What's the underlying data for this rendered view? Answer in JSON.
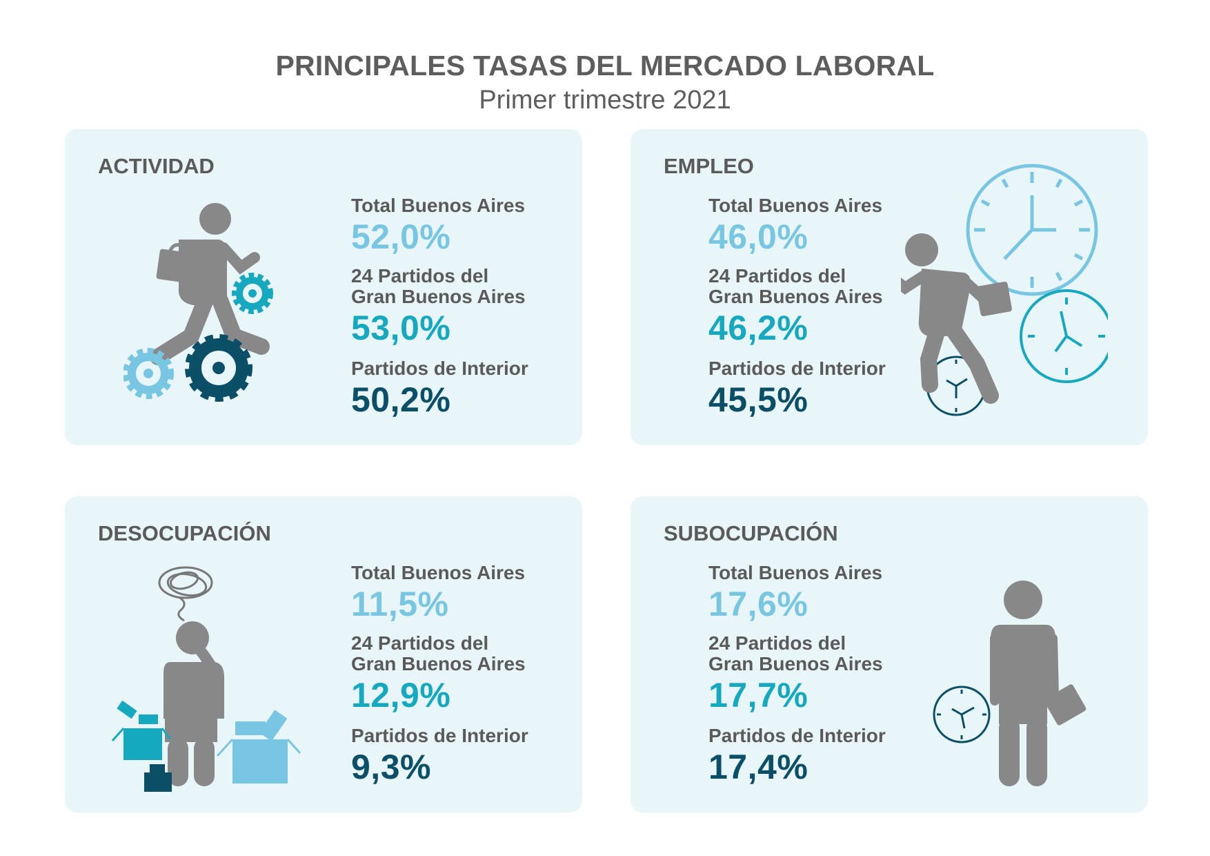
{
  "header": {
    "title": "PRINCIPALES TASAS DEL MERCADO LABORAL",
    "subtitle": "Primer trimestre  2021"
  },
  "colors": {
    "card_bg": "#e9f6f9",
    "light_blue": "#78c6e2",
    "teal": "#16a8bf",
    "dark_teal": "#0a4f67",
    "figure_gray": "#888888",
    "text_gray": "#5a5a5a"
  },
  "cards": [
    {
      "title": "ACTIVIDAD",
      "icon": "running-man-gears-icon",
      "stats": [
        {
          "label": "Total Buenos Aires",
          "value": "52,0%"
        },
        {
          "label": "24 Partidos del\nGran Buenos Aires",
          "value": "53,0%"
        },
        {
          "label": "Partidos de Interior",
          "value": "50,2%"
        }
      ]
    },
    {
      "title": "EMPLEO",
      "icon": "running-man-clocks-icon",
      "stats": [
        {
          "label": "Total Buenos Aires",
          "value": "46,0%"
        },
        {
          "label": "24 Partidos del\nGran Buenos Aires",
          "value": "46,2%"
        },
        {
          "label": "Partidos de Interior",
          "value": "45,5%"
        }
      ]
    },
    {
      "title": "DESOCUPACIÓN",
      "icon": "worried-man-boxes-icon",
      "stats": [
        {
          "label": "Total Buenos Aires",
          "value": "11,5%"
        },
        {
          "label": "24 Partidos del\nGran Buenos Aires",
          "value": "12,9%"
        },
        {
          "label": "Partidos de Interior",
          "value": "9,3%"
        }
      ]
    },
    {
      "title": "SUBOCUPACIÓN",
      "icon": "standing-man-clock-icon",
      "stats": [
        {
          "label": "Total Buenos Aires",
          "value": "17,6%"
        },
        {
          "label": "24 Partidos del\nGran Buenos Aires",
          "value": "17,7%"
        },
        {
          "label": "Partidos de Interior",
          "value": "17,4%"
        }
      ]
    }
  ]
}
